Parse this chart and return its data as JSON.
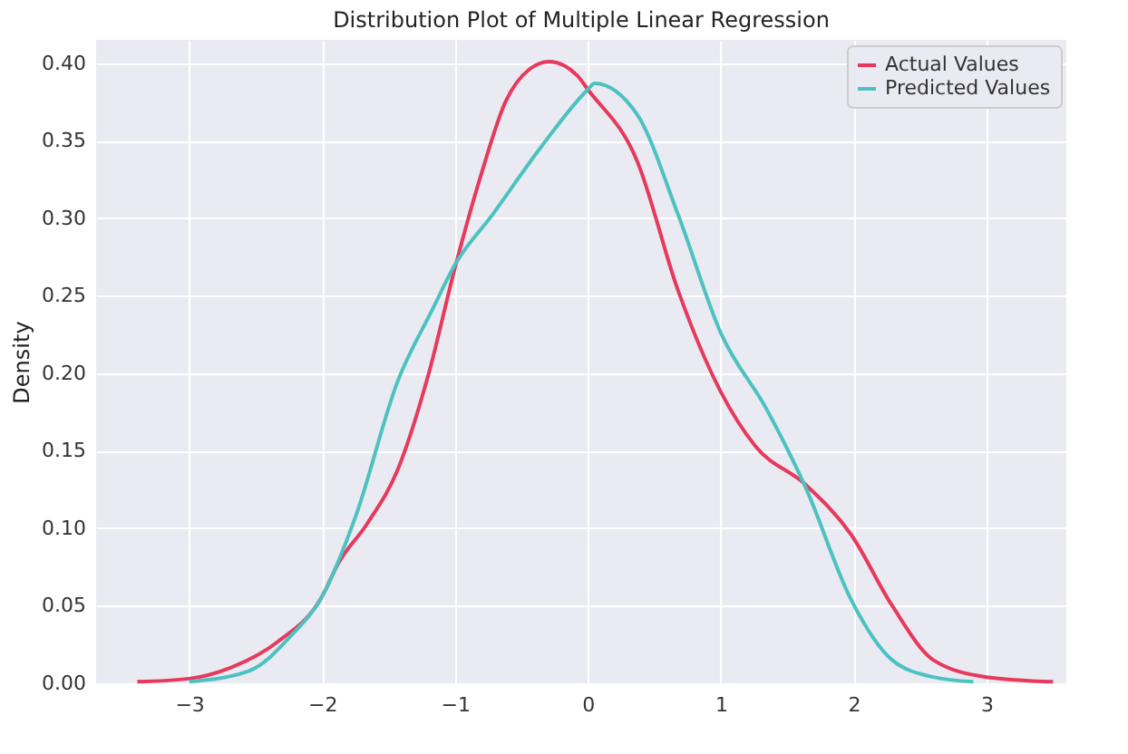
{
  "chart_data": {
    "type": "line",
    "title": "Distribution Plot of Multiple Linear Regression",
    "ylabel": "Density",
    "xlim": [
      -3.7,
      3.6
    ],
    "xticks": [
      {
        "value": -3,
        "label": "−3"
      },
      {
        "value": -2,
        "label": "−2"
      },
      {
        "value": -1,
        "label": "−1"
      },
      0,
      1,
      2,
      3
    ],
    "ylim": [
      0,
      0.415
    ],
    "yticks": [
      {
        "value": 0,
        "label": "0.00"
      },
      {
        "value": 0.05,
        "label": "0.05"
      },
      {
        "value": 0.1,
        "label": "0.10"
      },
      {
        "value": 0.15,
        "label": "0.15"
      },
      {
        "value": 0.2,
        "label": "0.20"
      },
      {
        "value": 0.25,
        "label": "0.25"
      },
      {
        "value": 0.3,
        "label": "0.30"
      },
      {
        "value": 0.35,
        "label": "0.35"
      },
      {
        "value": 0.4,
        "label": "0.40"
      }
    ],
    "grid": true,
    "legend": "top right",
    "marker": "none",
    "line_style": "solid",
    "series": [
      {
        "name": "Actual Values",
        "color": "#e6395c",
        "x": [
          -3.39,
          -3.0,
          -2.69,
          -2.33,
          -2.0,
          -1.88,
          -1.66,
          -1.43,
          -1.2,
          -1.0,
          -0.8,
          -0.62,
          -0.44,
          -0.29,
          -0.08,
          0.0,
          0.37,
          0.68,
          1.0,
          1.26,
          1.64,
          1.98,
          2.29,
          2.6,
          3.0,
          3.5
        ],
        "values": [
          0.001,
          0.003,
          0.01,
          0.027,
          0.056,
          0.077,
          0.103,
          0.138,
          0.199,
          0.268,
          0.329,
          0.375,
          0.396,
          0.401,
          0.392,
          0.383,
          0.337,
          0.253,
          0.188,
          0.153,
          0.128,
          0.096,
          0.05,
          0.015,
          0.004,
          0.001
        ]
      },
      {
        "name": "Predicted Values",
        "color": "#4cc2c0",
        "x": [
          -3.0,
          -2.55,
          -2.23,
          -2.0,
          -1.75,
          -1.43,
          -1.17,
          -1.0,
          -0.72,
          -0.36,
          0.0,
          0.05,
          0.37,
          0.68,
          1.0,
          1.35,
          1.64,
          1.98,
          2.29,
          2.6,
          2.9
        ],
        "values": [
          0.001,
          0.008,
          0.031,
          0.056,
          0.107,
          0.195,
          0.241,
          0.27,
          0.302,
          0.345,
          0.383,
          0.387,
          0.367,
          0.302,
          0.226,
          0.176,
          0.126,
          0.054,
          0.015,
          0.004,
          0.001
        ]
      }
    ]
  }
}
